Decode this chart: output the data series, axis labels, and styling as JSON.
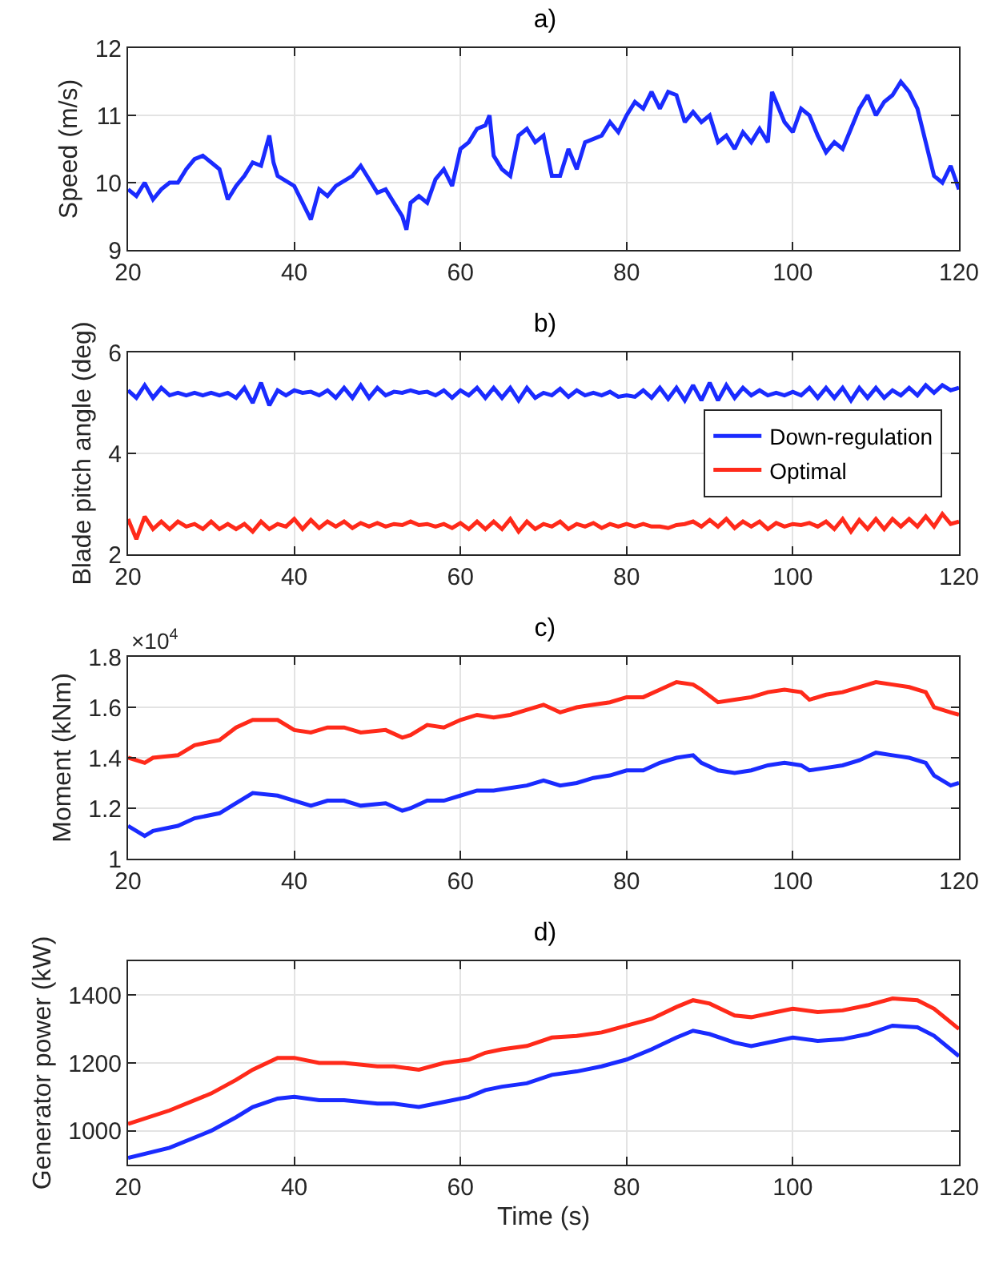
{
  "chart_data": [
    {
      "type": "line",
      "title": "a)",
      "ylabel": "Speed (m/s)",
      "xlim": [
        20,
        120
      ],
      "xticks": [
        20,
        40,
        60,
        80,
        100,
        120
      ],
      "ylim": [
        9,
        12
      ],
      "yticks": [
        9,
        10,
        11,
        12
      ],
      "grid": true,
      "series": [
        {
          "color": "#1a2bff",
          "x": [
            20,
            21,
            22,
            23,
            24,
            25,
            26,
            27,
            28,
            29,
            30,
            31,
            32,
            33,
            34,
            35,
            36,
            37,
            37.5,
            38,
            40,
            41,
            42,
            43,
            44,
            45,
            47,
            48,
            49,
            50,
            51,
            52,
            53,
            53.5,
            54,
            55,
            56,
            57,
            58,
            59,
            60,
            61,
            62,
            63,
            63.5,
            64,
            65,
            66,
            67,
            68,
            69,
            70,
            71,
            72,
            73,
            74,
            75,
            77,
            78,
            79,
            80,
            81,
            82,
            83,
            84,
            85,
            86,
            87,
            88,
            89,
            90,
            91,
            92,
            93,
            94,
            95,
            96,
            97,
            97.5,
            98,
            99,
            100,
            101,
            102,
            103,
            104,
            105,
            106,
            107,
            108,
            109,
            110,
            111,
            112,
            113,
            114,
            115,
            116,
            117,
            118,
            119,
            120
          ],
          "values": [
            9.9,
            9.8,
            10.0,
            9.75,
            9.9,
            10.0,
            10.0,
            10.2,
            10.35,
            10.4,
            10.3,
            10.2,
            9.75,
            9.95,
            10.1,
            10.3,
            10.25,
            10.7,
            10.3,
            10.1,
            9.95,
            9.7,
            9.45,
            9.9,
            9.8,
            9.95,
            10.1,
            10.25,
            10.05,
            9.85,
            9.9,
            9.7,
            9.5,
            9.3,
            9.7,
            9.8,
            9.7,
            10.05,
            10.2,
            9.95,
            10.5,
            10.6,
            10.8,
            10.85,
            11.0,
            10.4,
            10.2,
            10.1,
            10.7,
            10.8,
            10.6,
            10.7,
            10.1,
            10.1,
            10.5,
            10.2,
            10.6,
            10.7,
            10.9,
            10.75,
            11.0,
            11.2,
            11.1,
            11.35,
            11.1,
            11.35,
            11.3,
            10.9,
            11.05,
            10.9,
            11.0,
            10.6,
            10.7,
            10.5,
            10.75,
            10.6,
            10.8,
            10.6,
            11.35,
            11.2,
            10.9,
            10.75,
            11.1,
            11.0,
            10.7,
            10.45,
            10.6,
            10.5,
            10.8,
            11.1,
            11.3,
            11.0,
            11.2,
            11.3,
            11.5,
            11.35,
            11.1,
            10.6,
            10.1,
            10.0,
            10.25,
            9.9
          ]
        }
      ]
    },
    {
      "type": "line",
      "title": "b)",
      "ylabel": "Blade pitch angle (deg)",
      "xlim": [
        20,
        120
      ],
      "xticks": [
        20,
        40,
        60,
        80,
        100,
        120
      ],
      "ylim": [
        2,
        6
      ],
      "yticks": [
        2,
        4,
        6
      ],
      "grid": true,
      "legend": "right",
      "x": [
        20,
        21,
        22,
        23,
        24,
        25,
        26,
        27,
        28,
        29,
        30,
        31,
        32,
        33,
        34,
        35,
        36,
        37,
        38,
        39,
        40,
        41,
        42,
        43,
        44,
        45,
        46,
        47,
        48,
        49,
        50,
        51,
        52,
        53,
        54,
        55,
        56,
        57,
        58,
        59,
        60,
        61,
        62,
        63,
        64,
        65,
        66,
        67,
        68,
        69,
        70,
        71,
        72,
        73,
        74,
        75,
        76,
        77,
        78,
        79,
        80,
        81,
        82,
        83,
        84,
        85,
        86,
        87,
        88,
        89,
        90,
        91,
        92,
        93,
        94,
        95,
        96,
        97,
        98,
        99,
        100,
        101,
        102,
        103,
        104,
        105,
        106,
        107,
        108,
        109,
        110,
        111,
        112,
        113,
        114,
        115,
        116,
        117,
        118,
        119,
        120
      ],
      "series": [
        {
          "name": "Down-regulation",
          "color": "#1a2bff",
          "values": [
            5.25,
            5.1,
            5.35,
            5.1,
            5.3,
            5.15,
            5.2,
            5.15,
            5.2,
            5.15,
            5.2,
            5.15,
            5.2,
            5.1,
            5.3,
            5.0,
            5.4,
            4.95,
            5.25,
            5.15,
            5.25,
            5.2,
            5.22,
            5.15,
            5.25,
            5.1,
            5.3,
            5.1,
            5.35,
            5.1,
            5.3,
            5.15,
            5.22,
            5.2,
            5.25,
            5.2,
            5.22,
            5.15,
            5.25,
            5.1,
            5.25,
            5.15,
            5.3,
            5.1,
            5.3,
            5.1,
            5.3,
            5.05,
            5.3,
            5.1,
            5.2,
            5.15,
            5.28,
            5.12,
            5.25,
            5.15,
            5.2,
            5.15,
            5.22,
            5.12,
            5.15,
            5.12,
            5.25,
            5.1,
            5.3,
            5.08,
            5.3,
            5.05,
            5.35,
            5.05,
            5.4,
            5.05,
            5.35,
            5.1,
            5.3,
            5.15,
            5.25,
            5.15,
            5.2,
            5.15,
            5.22,
            5.15,
            5.3,
            5.1,
            5.3,
            5.1,
            5.3,
            5.05,
            5.3,
            5.1,
            5.3,
            5.1,
            5.25,
            5.15,
            5.3,
            5.15,
            5.35,
            5.2,
            5.35,
            5.25,
            5.3
          ]
        },
        {
          "name": "Optimal",
          "color": "#ff2a1a",
          "values": [
            2.7,
            2.3,
            2.75,
            2.5,
            2.65,
            2.5,
            2.65,
            2.55,
            2.6,
            2.5,
            2.65,
            2.5,
            2.6,
            2.5,
            2.6,
            2.45,
            2.65,
            2.5,
            2.6,
            2.55,
            2.7,
            2.5,
            2.68,
            2.52,
            2.65,
            2.55,
            2.65,
            2.52,
            2.62,
            2.55,
            2.62,
            2.55,
            2.6,
            2.58,
            2.65,
            2.58,
            2.6,
            2.55,
            2.6,
            2.52,
            2.62,
            2.5,
            2.65,
            2.5,
            2.65,
            2.5,
            2.7,
            2.45,
            2.65,
            2.5,
            2.6,
            2.55,
            2.65,
            2.5,
            2.6,
            2.55,
            2.62,
            2.52,
            2.6,
            2.55,
            2.6,
            2.55,
            2.6,
            2.55,
            2.55,
            2.52,
            2.58,
            2.6,
            2.65,
            2.55,
            2.68,
            2.55,
            2.7,
            2.52,
            2.65,
            2.55,
            2.65,
            2.5,
            2.62,
            2.55,
            2.6,
            2.58,
            2.62,
            2.55,
            2.65,
            2.5,
            2.7,
            2.45,
            2.68,
            2.5,
            2.7,
            2.5,
            2.7,
            2.55,
            2.7,
            2.55,
            2.75,
            2.55,
            2.8,
            2.6,
            2.65
          ]
        }
      ]
    },
    {
      "type": "line",
      "title": "c)",
      "ylabel": "Moment (kNm)",
      "annotations": [
        "×10$^{4}$"
      ],
      "xlim": [
        20,
        120
      ],
      "xticks": [
        20,
        40,
        60,
        80,
        100,
        120
      ],
      "ylim": [
        1,
        1.8
      ],
      "yticks": [
        1,
        1.2,
        1.4,
        1.6,
        1.8
      ],
      "grid": true,
      "x": [
        20,
        22,
        23,
        26,
        28,
        31,
        33,
        35,
        38,
        40,
        42,
        44,
        46,
        48,
        51,
        53,
        54,
        56,
        58,
        60,
        62,
        64,
        66,
        68,
        70,
        72,
        74,
        76,
        78,
        80,
        82,
        84,
        86,
        88,
        89,
        91,
        93,
        95,
        97,
        99,
        101,
        102,
        104,
        106,
        108,
        110,
        112,
        114,
        116,
        117,
        119,
        120
      ],
      "series": [
        {
          "color": "#1a2bff",
          "values": [
            1.13,
            1.09,
            1.11,
            1.13,
            1.16,
            1.18,
            1.22,
            1.26,
            1.25,
            1.23,
            1.21,
            1.23,
            1.23,
            1.21,
            1.22,
            1.19,
            1.2,
            1.23,
            1.23,
            1.25,
            1.27,
            1.27,
            1.28,
            1.29,
            1.31,
            1.29,
            1.3,
            1.32,
            1.33,
            1.35,
            1.35,
            1.38,
            1.4,
            1.41,
            1.38,
            1.35,
            1.34,
            1.35,
            1.37,
            1.38,
            1.37,
            1.35,
            1.36,
            1.37,
            1.39,
            1.42,
            1.41,
            1.4,
            1.38,
            1.33,
            1.29,
            1.3
          ]
        },
        {
          "color": "#ff2a1a",
          "values": [
            1.4,
            1.38,
            1.4,
            1.41,
            1.45,
            1.47,
            1.52,
            1.55,
            1.55,
            1.51,
            1.5,
            1.52,
            1.52,
            1.5,
            1.51,
            1.48,
            1.49,
            1.53,
            1.52,
            1.55,
            1.57,
            1.56,
            1.57,
            1.59,
            1.61,
            1.58,
            1.6,
            1.61,
            1.62,
            1.64,
            1.64,
            1.67,
            1.7,
            1.69,
            1.67,
            1.62,
            1.63,
            1.64,
            1.66,
            1.67,
            1.66,
            1.63,
            1.65,
            1.66,
            1.68,
            1.7,
            1.69,
            1.68,
            1.66,
            1.6,
            1.58,
            1.57
          ]
        }
      ]
    },
    {
      "type": "line",
      "title": "d)",
      "xlabel": "Time (s)",
      "ylabel": "Generator power (kW)",
      "xlim": [
        20,
        120
      ],
      "xticks": [
        20,
        40,
        60,
        80,
        100,
        120
      ],
      "ylim": [
        900,
        1500
      ],
      "yticks": [
        1000,
        1200,
        1400
      ],
      "grid": true,
      "x": [
        20,
        25,
        30,
        33,
        35,
        38,
        40,
        43,
        46,
        50,
        52,
        55,
        58,
        61,
        63,
        65,
        68,
        71,
        74,
        77,
        80,
        83,
        86,
        88,
        90,
        93,
        95,
        98,
        100,
        103,
        106,
        109,
        112,
        115,
        117,
        120
      ],
      "series": [
        {
          "color": "#1a2bff",
          "values": [
            920,
            950,
            1000,
            1040,
            1070,
            1095,
            1100,
            1090,
            1090,
            1080,
            1080,
            1070,
            1085,
            1100,
            1120,
            1130,
            1140,
            1165,
            1175,
            1190,
            1210,
            1240,
            1275,
            1295,
            1285,
            1260,
            1250,
            1265,
            1275,
            1265,
            1270,
            1285,
            1310,
            1305,
            1280,
            1220
          ]
        },
        {
          "color": "#ff2a1a",
          "values": [
            1020,
            1060,
            1110,
            1150,
            1180,
            1215,
            1215,
            1200,
            1200,
            1190,
            1190,
            1180,
            1200,
            1210,
            1230,
            1240,
            1250,
            1275,
            1280,
            1290,
            1310,
            1330,
            1365,
            1385,
            1375,
            1340,
            1335,
            1350,
            1360,
            1350,
            1355,
            1370,
            1390,
            1385,
            1360,
            1300
          ]
        }
      ]
    }
  ]
}
